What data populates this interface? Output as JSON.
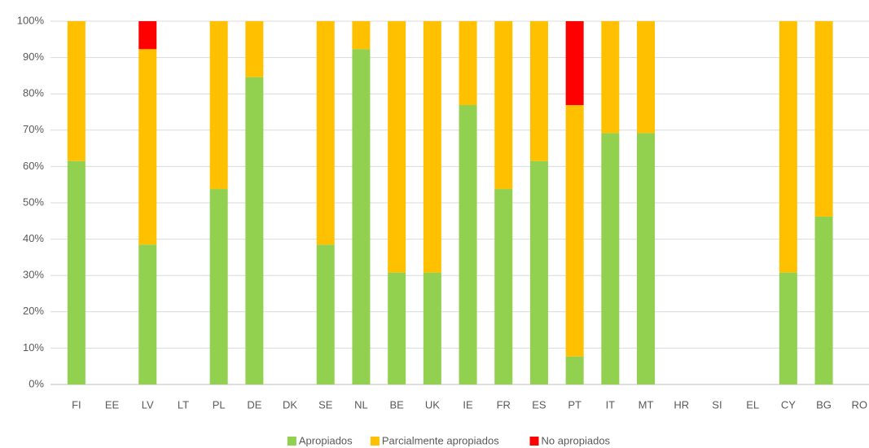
{
  "chart_data": {
    "type": "stacked_bar",
    "categories": [
      "FI",
      "EE",
      "LV",
      "LT",
      "PL",
      "DE",
      "DK",
      "SE",
      "NL",
      "BE",
      "UK",
      "IE",
      "FR",
      "ES",
      "PT",
      "IT",
      "MT",
      "HR",
      "SI",
      "EL",
      "CY",
      "BG",
      "RO"
    ],
    "series": [
      {
        "name": "Apropiados",
        "color": "#92d050",
        "values": [
          61.5,
          0,
          38.5,
          0,
          53.8,
          84.6,
          0,
          38.5,
          92.3,
          30.8,
          30.8,
          76.9,
          53.8,
          61.5,
          7.7,
          69.2,
          69.2,
          0,
          0,
          0,
          30.8,
          46.2,
          0
        ]
      },
      {
        "name": "Parcialmente apropiados",
        "color": "#ffc000",
        "values": [
          38.5,
          0,
          53.8,
          0,
          46.2,
          15.4,
          0,
          61.5,
          7.7,
          69.2,
          69.2,
          23.1,
          46.2,
          38.5,
          69.2,
          30.8,
          30.8,
          0,
          0,
          0,
          69.2,
          53.8,
          0
        ]
      },
      {
        "name": "No apropiados",
        "color": "#ff0000",
        "values": [
          0,
          0,
          7.7,
          0,
          0,
          0,
          0,
          0,
          0,
          0,
          0,
          0,
          0,
          0,
          23.1,
          0,
          0,
          0,
          0,
          0,
          0,
          0,
          0
        ]
      }
    ],
    "ylim": [
      0,
      100
    ],
    "yticks": [
      {
        "value": 0,
        "label": "0%"
      },
      {
        "value": 10,
        "label": "10%"
      },
      {
        "value": 20,
        "label": "20%"
      },
      {
        "value": 30,
        "label": "30%"
      },
      {
        "value": 40,
        "label": "40%"
      },
      {
        "value": 50,
        "label": "50%"
      },
      {
        "value": 60,
        "label": "60%"
      },
      {
        "value": 70,
        "label": "70%"
      },
      {
        "value": 80,
        "label": "80%"
      },
      {
        "value": 90,
        "label": "90%"
      },
      {
        "value": 100,
        "label": "100%"
      }
    ],
    "grid": true,
    "legend": "bottom"
  }
}
